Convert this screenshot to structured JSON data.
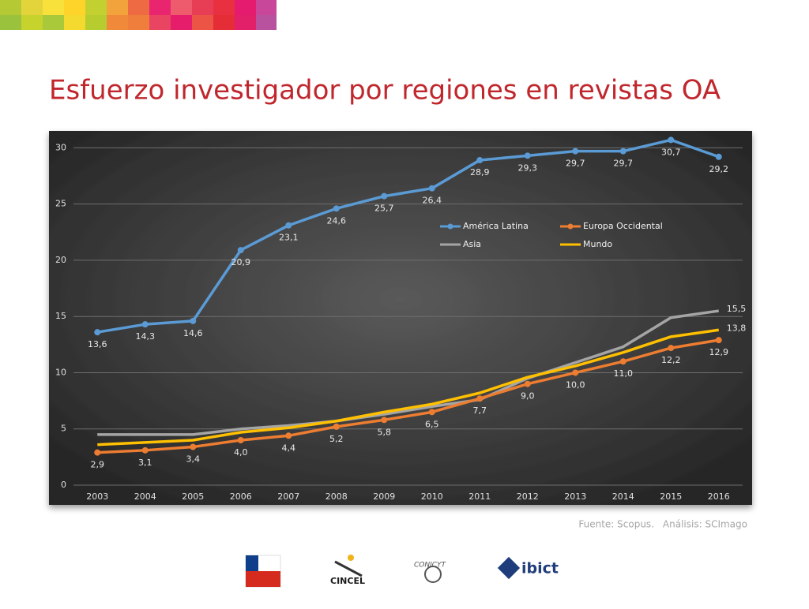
{
  "header": {
    "title": "Esfuerzo investigador por regiones en revistas OA"
  },
  "chart_data": {
    "type": "line",
    "categories": [
      "2003",
      "2004",
      "2005",
      "2006",
      "2007",
      "2008",
      "2009",
      "2010",
      "2011",
      "2012",
      "2013",
      "2014",
      "2015",
      "2016"
    ],
    "series": [
      {
        "name": "América Latina",
        "color": "#5b9bd5",
        "markers": true,
        "values": [
          13.6,
          14.3,
          14.6,
          20.9,
          23.1,
          24.6,
          25.7,
          26.4,
          28.9,
          29.3,
          29.7,
          29.7,
          30.7,
          29.2
        ],
        "value_labels": [
          "13,6",
          "14,3",
          "14,6",
          "20,9",
          "23,1",
          "24,6",
          "25,7",
          "26,4",
          "28,9",
          "29,3",
          "29,7",
          "29,7",
          "30,7",
          "29,2"
        ]
      },
      {
        "name": "Europa Occidental",
        "color": "#ed7d31",
        "markers": true,
        "values": [
          2.9,
          3.1,
          3.4,
          4.0,
          4.4,
          5.2,
          5.8,
          6.5,
          7.7,
          9.0,
          10.0,
          11.0,
          12.2,
          12.9
        ],
        "value_labels": [
          "2,9",
          "3,1",
          "3,4",
          "4,0",
          "4,4",
          "5,2",
          "5,8",
          "6,5",
          "7,7",
          "9,0",
          "10,0",
          "11,0",
          "12,2",
          "12,9"
        ]
      },
      {
        "name": "Asia",
        "color": "#a5a5a5",
        "markers": false,
        "values": [
          4.5,
          4.5,
          4.5,
          5.0,
          5.3,
          5.7,
          6.3,
          7.0,
          7.6,
          9.5,
          10.9,
          12.3,
          14.9,
          15.5
        ],
        "value_labels": [
          null,
          null,
          null,
          null,
          null,
          null,
          null,
          null,
          null,
          null,
          null,
          null,
          null,
          "15,5"
        ]
      },
      {
        "name": "Mundo",
        "color": "#ffc000",
        "markers": false,
        "values": [
          3.6,
          3.8,
          4.0,
          4.7,
          5.1,
          5.7,
          6.5,
          7.2,
          8.2,
          9.6,
          10.6,
          11.8,
          13.2,
          13.8
        ],
        "value_labels": [
          null,
          null,
          null,
          null,
          null,
          null,
          null,
          null,
          null,
          null,
          null,
          null,
          null,
          "13,8"
        ]
      }
    ],
    "ylim": [
      0,
      31.5
    ],
    "yticks": [
      0,
      5,
      10,
      15,
      20,
      25,
      30
    ],
    "grid": true
  },
  "footer": {
    "source": "Fuente: Scopus.",
    "analysis": "Análisis: SCImago",
    "logos": [
      "CINCEL",
      "CONICYT",
      "ibict"
    ]
  }
}
